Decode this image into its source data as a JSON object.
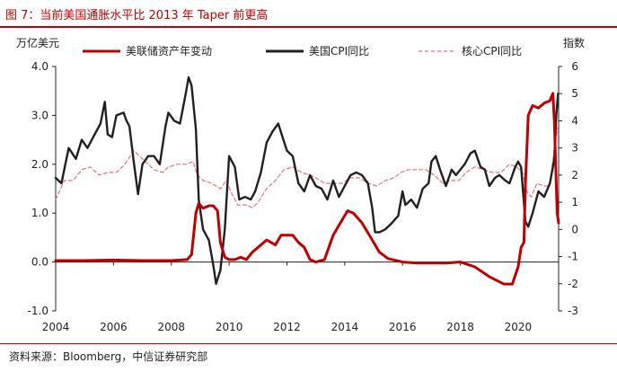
{
  "figure_title": "图 7：当前美国通胀水平比 2013 年 Taper 前更高",
  "source": "资料来源：Bloomberg，中信证券研究部",
  "chart_data": {
    "type": "line",
    "left_axis_unit": "万亿美元",
    "right_axis_unit": "指数",
    "x_ticks": [
      "2004",
      "2006",
      "2008",
      "2010",
      "2012",
      "2014",
      "2016",
      "2018",
      "2020"
    ],
    "y_left_ticks": [
      "4.0",
      "3.0",
      "2.0",
      "1.0",
      "0.0",
      "-1.0"
    ],
    "y_right_ticks": [
      "6",
      "5",
      "4",
      "3",
      "2",
      "1",
      "0",
      "-1",
      "-2",
      "-3"
    ],
    "ylim_left": [
      -1.0,
      4.0
    ],
    "ylim_right": [
      -3,
      6
    ],
    "xlim": [
      2004.0,
      2021.4
    ],
    "legend_position": "top",
    "series": [
      {
        "name": "美联储资产年变动",
        "axis": "left",
        "color": "#c00000",
        "style": "solid",
        "points": [
          [
            2004.0,
            0.03
          ],
          [
            2005.0,
            0.03
          ],
          [
            2006.0,
            0.04
          ],
          [
            2007.0,
            0.03
          ],
          [
            2008.0,
            0.03
          ],
          [
            2008.55,
            0.05
          ],
          [
            2008.7,
            0.15
          ],
          [
            2008.85,
            1.0
          ],
          [
            2008.95,
            1.2
          ],
          [
            2009.1,
            1.1
          ],
          [
            2009.3,
            1.15
          ],
          [
            2009.45,
            1.15
          ],
          [
            2009.6,
            1.05
          ],
          [
            2009.7,
            0.4
          ],
          [
            2009.85,
            0.1
          ],
          [
            2010.0,
            0.05
          ],
          [
            2010.2,
            0.05
          ],
          [
            2010.4,
            0.1
          ],
          [
            2010.6,
            0.05
          ],
          [
            2010.8,
            0.2
          ],
          [
            2011.0,
            0.3
          ],
          [
            2011.3,
            0.45
          ],
          [
            2011.6,
            0.35
          ],
          [
            2011.8,
            0.55
          ],
          [
            2012.0,
            0.55
          ],
          [
            2012.2,
            0.55
          ],
          [
            2012.4,
            0.4
          ],
          [
            2012.6,
            0.3
          ],
          [
            2012.8,
            0.05
          ],
          [
            2013.0,
            0.0
          ],
          [
            2013.3,
            0.05
          ],
          [
            2013.6,
            0.55
          ],
          [
            2013.9,
            0.85
          ],
          [
            2014.1,
            1.05
          ],
          [
            2014.3,
            1.0
          ],
          [
            2014.6,
            0.8
          ],
          [
            2014.9,
            0.5
          ],
          [
            2015.2,
            0.2
          ],
          [
            2015.5,
            0.07
          ],
          [
            2016.0,
            0.0
          ],
          [
            2016.5,
            -0.02
          ],
          [
            2017.0,
            -0.02
          ],
          [
            2017.5,
            -0.02
          ],
          [
            2018.0,
            0.0
          ],
          [
            2018.5,
            -0.1
          ],
          [
            2019.0,
            -0.3
          ],
          [
            2019.5,
            -0.45
          ],
          [
            2019.8,
            -0.45
          ],
          [
            2020.0,
            -0.1
          ],
          [
            2020.1,
            0.3
          ],
          [
            2020.2,
            0.4
          ],
          [
            2020.25,
            1.6
          ],
          [
            2020.35,
            3.0
          ],
          [
            2020.5,
            3.2
          ],
          [
            2020.7,
            3.15
          ],
          [
            2020.9,
            3.25
          ],
          [
            2021.1,
            3.3
          ],
          [
            2021.2,
            3.45
          ],
          [
            2021.25,
            2.9
          ],
          [
            2021.35,
            1.0
          ],
          [
            2021.4,
            0.8
          ]
        ]
      },
      {
        "name": "美国CPI同比",
        "axis": "right",
        "color": "#231f20",
        "style": "solid",
        "points": [
          [
            2004.0,
            1.9
          ],
          [
            2004.2,
            1.7
          ],
          [
            2004.45,
            3.0
          ],
          [
            2004.7,
            2.6
          ],
          [
            2004.9,
            3.3
          ],
          [
            2005.1,
            3.0
          ],
          [
            2005.3,
            3.4
          ],
          [
            2005.55,
            3.9
          ],
          [
            2005.7,
            4.7
          ],
          [
            2005.8,
            3.5
          ],
          [
            2005.95,
            3.4
          ],
          [
            2006.1,
            4.2
          ],
          [
            2006.35,
            4.3
          ],
          [
            2006.45,
            4.0
          ],
          [
            2006.55,
            3.8
          ],
          [
            2006.7,
            2.5
          ],
          [
            2006.85,
            1.3
          ],
          [
            2007.0,
            2.4
          ],
          [
            2007.2,
            2.7
          ],
          [
            2007.4,
            2.7
          ],
          [
            2007.6,
            2.4
          ],
          [
            2007.8,
            3.8
          ],
          [
            2007.9,
            4.3
          ],
          [
            2008.1,
            4.0
          ],
          [
            2008.3,
            3.9
          ],
          [
            2008.5,
            5.0
          ],
          [
            2008.6,
            5.6
          ],
          [
            2008.7,
            5.3
          ],
          [
            2008.85,
            3.7
          ],
          [
            2008.95,
            1.1
          ],
          [
            2009.1,
            0.0
          ],
          [
            2009.3,
            -0.4
          ],
          [
            2009.45,
            -1.3
          ],
          [
            2009.55,
            -2.0
          ],
          [
            2009.7,
            -1.5
          ],
          [
            2009.85,
            0.0
          ],
          [
            2010.0,
            2.7
          ],
          [
            2010.2,
            2.3
          ],
          [
            2010.35,
            1.1
          ],
          [
            2010.55,
            1.2
          ],
          [
            2010.75,
            1.1
          ],
          [
            2010.9,
            1.4
          ],
          [
            2011.1,
            2.1
          ],
          [
            2011.3,
            3.2
          ],
          [
            2011.5,
            3.6
          ],
          [
            2011.7,
            3.9
          ],
          [
            2011.85,
            3.4
          ],
          [
            2012.0,
            2.9
          ],
          [
            2012.2,
            2.7
          ],
          [
            2012.4,
            1.7
          ],
          [
            2012.6,
            1.4
          ],
          [
            2012.8,
            2.0
          ],
          [
            2013.0,
            1.6
          ],
          [
            2013.2,
            1.5
          ],
          [
            2013.4,
            1.1
          ],
          [
            2013.6,
            1.8
          ],
          [
            2013.8,
            1.2
          ],
          [
            2014.0,
            1.6
          ],
          [
            2014.2,
            2.0
          ],
          [
            2014.4,
            2.1
          ],
          [
            2014.6,
            2.0
          ],
          [
            2014.8,
            1.7
          ],
          [
            2014.95,
            0.8
          ],
          [
            2015.05,
            -0.1
          ],
          [
            2015.2,
            -0.1
          ],
          [
            2015.4,
            0.0
          ],
          [
            2015.6,
            0.2
          ],
          [
            2015.85,
            0.5
          ],
          [
            2016.0,
            1.4
          ],
          [
            2016.1,
            0.9
          ],
          [
            2016.3,
            1.1
          ],
          [
            2016.5,
            0.8
          ],
          [
            2016.7,
            1.5
          ],
          [
            2016.9,
            1.7
          ],
          [
            2017.0,
            2.5
          ],
          [
            2017.15,
            2.7
          ],
          [
            2017.3,
            2.2
          ],
          [
            2017.5,
            1.6
          ],
          [
            2017.7,
            2.2
          ],
          [
            2017.85,
            2.0
          ],
          [
            2018.0,
            2.2
          ],
          [
            2018.15,
            2.4
          ],
          [
            2018.35,
            2.8
          ],
          [
            2018.5,
            2.9
          ],
          [
            2018.7,
            2.3
          ],
          [
            2018.85,
            2.2
          ],
          [
            2019.0,
            1.6
          ],
          [
            2019.2,
            1.9
          ],
          [
            2019.35,
            2.0
          ],
          [
            2019.55,
            1.8
          ],
          [
            2019.7,
            1.7
          ],
          [
            2019.9,
            2.3
          ],
          [
            2020.0,
            2.5
          ],
          [
            2020.1,
            2.3
          ],
          [
            2020.25,
            0.3
          ],
          [
            2020.35,
            0.1
          ],
          [
            2020.5,
            0.6
          ],
          [
            2020.7,
            1.4
          ],
          [
            2020.9,
            1.2
          ],
          [
            2021.1,
            1.7
          ],
          [
            2021.25,
            2.6
          ],
          [
            2021.32,
            4.2
          ],
          [
            2021.38,
            5.0
          ]
        ]
      },
      {
        "name": "核心CPI同比",
        "axis": "right",
        "color": "#e8707a",
        "style": "dashed",
        "points": [
          [
            2004.0,
            1.1
          ],
          [
            2004.3,
            1.8
          ],
          [
            2004.6,
            1.8
          ],
          [
            2004.9,
            2.2
          ],
          [
            2005.2,
            2.3
          ],
          [
            2005.5,
            2.0
          ],
          [
            2005.8,
            2.1
          ],
          [
            2006.1,
            2.1
          ],
          [
            2006.4,
            2.4
          ],
          [
            2006.7,
            2.9
          ],
          [
            2006.9,
            2.7
          ],
          [
            2007.1,
            2.5
          ],
          [
            2007.4,
            2.2
          ],
          [
            2007.7,
            2.1
          ],
          [
            2007.9,
            2.3
          ],
          [
            2008.2,
            2.4
          ],
          [
            2008.5,
            2.4
          ],
          [
            2008.75,
            2.5
          ],
          [
            2008.9,
            2.0
          ],
          [
            2009.1,
            1.8
          ],
          [
            2009.4,
            1.7
          ],
          [
            2009.7,
            1.5
          ],
          [
            2009.9,
            1.8
          ],
          [
            2010.1,
            1.3
          ],
          [
            2010.3,
            0.9
          ],
          [
            2010.6,
            0.9
          ],
          [
            2010.8,
            0.8
          ],
          [
            2011.0,
            1.0
          ],
          [
            2011.3,
            1.5
          ],
          [
            2011.6,
            1.8
          ],
          [
            2011.9,
            2.2
          ],
          [
            2012.2,
            2.3
          ],
          [
            2012.5,
            2.1
          ],
          [
            2012.8,
            2.0
          ],
          [
            2013.0,
            1.9
          ],
          [
            2013.3,
            1.7
          ],
          [
            2013.6,
            1.7
          ],
          [
            2013.9,
            1.7
          ],
          [
            2014.2,
            1.9
          ],
          [
            2014.5,
            1.9
          ],
          [
            2014.8,
            1.7
          ],
          [
            2015.1,
            1.6
          ],
          [
            2015.4,
            1.8
          ],
          [
            2015.7,
            1.9
          ],
          [
            2015.95,
            2.1
          ],
          [
            2016.2,
            2.2
          ],
          [
            2016.5,
            2.2
          ],
          [
            2016.8,
            2.2
          ],
          [
            2017.1,
            2.0
          ],
          [
            2017.4,
            1.7
          ],
          [
            2017.7,
            1.8
          ],
          [
            2017.95,
            1.8
          ],
          [
            2018.2,
            2.1
          ],
          [
            2018.5,
            2.3
          ],
          [
            2018.8,
            2.2
          ],
          [
            2019.1,
            2.1
          ],
          [
            2019.4,
            2.1
          ],
          [
            2019.7,
            2.4
          ],
          [
            2019.95,
            2.3
          ],
          [
            2020.15,
            2.1
          ],
          [
            2020.3,
            1.4
          ],
          [
            2020.45,
            1.2
          ],
          [
            2020.65,
            1.7
          ],
          [
            2020.9,
            1.6
          ],
          [
            2021.1,
            1.6
          ],
          [
            2021.25,
            3.0
          ],
          [
            2021.38,
            3.8
          ]
        ]
      }
    ]
  }
}
